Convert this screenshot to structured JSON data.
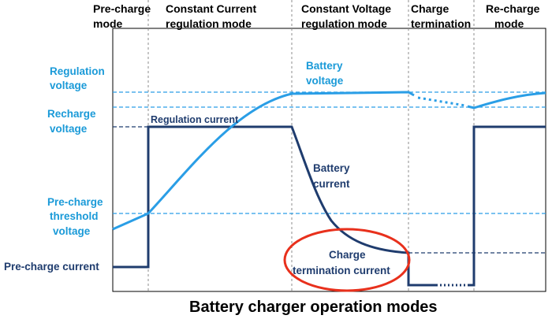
{
  "modes": [
    {
      "line1": "Pre-charge",
      "line2": "mode"
    },
    {
      "line1": "Constant Current",
      "line2": "regulation mode"
    },
    {
      "line1": "Constant Voltage",
      "line2": "regulation mode"
    },
    {
      "line1": "Charge",
      "line2": "termination"
    },
    {
      "line1": "Re-charge",
      "line2": "mode"
    }
  ],
  "voltage_labels": {
    "regulation_1": "Regulation",
    "regulation_2": "voltage",
    "recharge_1": "Recharge",
    "recharge_2": "voltage",
    "precharge_1": "Pre-charge",
    "precharge_2": "threshold",
    "precharge_3": "voltage"
  },
  "current_labels": {
    "precharge_current": "Pre-charge current",
    "regulation_current": "Regulation current",
    "termination_1": "Charge",
    "termination_2": "termination current"
  },
  "curve_labels": {
    "battery_voltage_1": "Battery",
    "battery_voltage_2": "voltage",
    "battery_current_1": "Battery",
    "battery_current_2": "current"
  },
  "caption": "Battery charger operation modes",
  "colors": {
    "voltage": "#2a9ee6",
    "current": "#1f3c6e",
    "highlight": "#e8301c",
    "divider": "#8c8c8c"
  }
}
